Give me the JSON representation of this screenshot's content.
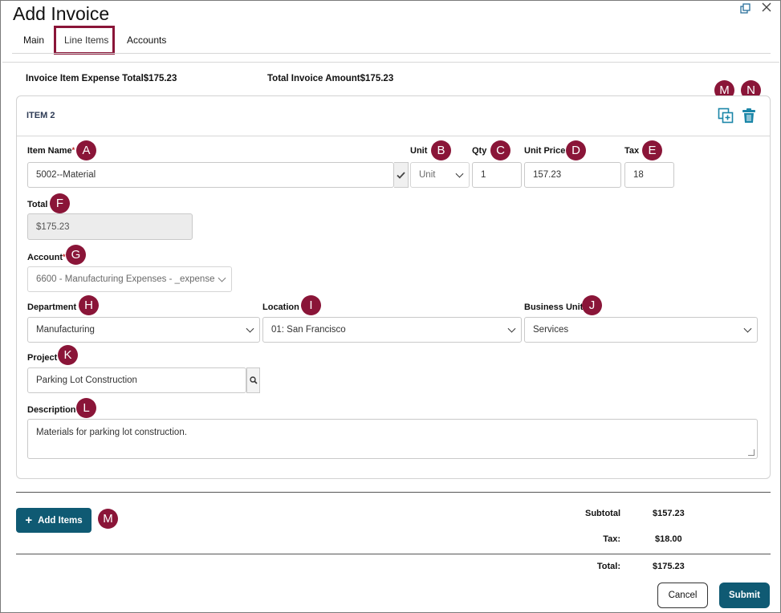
{
  "window": {
    "title": "Add Invoice",
    "popout_icon": "popout-icon",
    "close_icon": "close-icon"
  },
  "tabs": [
    {
      "label": "Main",
      "active": false
    },
    {
      "label": "Line Items",
      "active": true
    },
    {
      "label": "Accounts",
      "active": false
    }
  ],
  "summary": {
    "expense_total_label": "Invoice Item Expense Total",
    "expense_total_value": "$175.23",
    "invoice_amount_label": "Total Invoice Amount",
    "invoice_amount_value": "$175.23"
  },
  "item": {
    "label": "ITEM 2",
    "duplicate_icon": "duplicate-icon",
    "delete_icon": "trash-icon",
    "fields": {
      "item_name": {
        "label": "Item Name",
        "required": "*",
        "value": "5002--Material"
      },
      "unit": {
        "label": "Unit",
        "value": "Unit"
      },
      "qty": {
        "label": "Qty",
        "value": "1"
      },
      "unit_price": {
        "label": "Unit Price",
        "value": "157.23"
      },
      "tax": {
        "label": "Tax",
        "value": "18"
      },
      "total": {
        "label": "Total",
        "value": "$175.23"
      },
      "account": {
        "label": "Account",
        "required": "*",
        "value": "6600 - Manufacturing Expenses - _expense"
      },
      "department": {
        "label": "Department",
        "value": "Manufacturing"
      },
      "location": {
        "label": "Location",
        "value": "01: San Francisco"
      },
      "business_unit": {
        "label": "Business Unit",
        "value": "Services"
      },
      "project": {
        "label": "Project",
        "value": "Parking Lot Construction"
      },
      "description": {
        "label": "Description",
        "value": "Materials for parking lot construction."
      }
    }
  },
  "callouts": {
    "a": "A",
    "b": "B",
    "c": "C",
    "d": "D",
    "e": "E",
    "f": "F",
    "g": "G",
    "h": "H",
    "i": "I",
    "j": "J",
    "k": "K",
    "l": "L",
    "m": "M",
    "n": "N",
    "m2": "M"
  },
  "footer": {
    "add_items_label": "Add Items",
    "subtotal_label": "Subtotal",
    "subtotal_value": "$157.23",
    "tax_label": "Tax:",
    "tax_value": "$18.00",
    "total_label": "Total:",
    "total_value": "$175.23",
    "cancel_label": "Cancel",
    "submit_label": "Submit"
  },
  "colors": {
    "accent": "#8a1538",
    "primary_button": "#0f5a73",
    "icon_teal": "#1a86a8"
  }
}
